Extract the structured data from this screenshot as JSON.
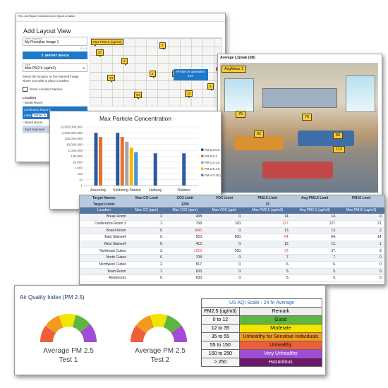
{
  "layout_view": {
    "topbar": "TSI Link Report Creation excel report creation",
    "title": "Add Layout View",
    "name_label": "Name (required)",
    "name_value": "My Floorplan Image 1",
    "name_counter": "20 / 48",
    "import_button": "IMPORT IMAGE",
    "value_label": "Value",
    "value_selected": "Max PM2.5 (ug/m3)",
    "help_text": "Select the location on the inserted image where you wish to place a marker.",
    "show_names_label": "Show Location Names",
    "locations_title": "Location",
    "locations": [
      "Break Room",
      "Conference Room 3",
      "Board Room",
      "East Stairwell"
    ],
    "sub_label": "Label",
    "sub_value": "Printer in",
    "map_header_pin": "Max PM2.5 (ug/m3)",
    "pins": [
      "37",
      "7",
      "6",
      "14",
      "5",
      "5",
      "5",
      "64",
      "12"
    ],
    "popup_title": "Printer in operation",
    "popup_value": "137"
  },
  "photo_view": {
    "title": "Average LZpeak (dB)",
    "header_tag": "AvgMeas 1",
    "tags": [
      "75",
      "76",
      "92",
      "80",
      "113"
    ]
  },
  "chart_data": {
    "type": "bar",
    "title": "Max Particle Concentration",
    "y_scale": "log",
    "ylim": [
      1,
      10000000000
    ],
    "y_tick_labels": [
      "10,000,000,000",
      "1,000,000,000",
      "100,000,000",
      "10,000,000",
      "1,000,000",
      "100,000",
      "10,000",
      "1,000",
      "100",
      "10",
      "1"
    ],
    "categories": [
      "Assembly",
      "Soldering Station",
      "Hallway",
      "Outdoor"
    ],
    "series": [
      {
        "name": "PM 0.3-0.5",
        "color": "#2c5aa0",
        "values": [
          1000000000,
          1000000000,
          320000,
          320000
        ]
      },
      {
        "name": "PM 0.5-1",
        "color": "#e8702a",
        "values": [
          200000000,
          200000000,
          null,
          null
        ]
      },
      {
        "name": "PM 1.0-2.5 (#/m3)",
        "color": "#a5a5a5",
        "values": [
          null,
          30000000,
          null,
          null
        ]
      },
      {
        "name": "PM 2.5-4.0 (#/m3)",
        "color": "#f5b700",
        "values": [
          null,
          3000000,
          null,
          null
        ]
      },
      {
        "name": "PM 4.0-10 (#/m3)",
        "color": "#4a8fd4",
        "values": [
          null,
          500000,
          null,
          null
        ]
      }
    ],
    "legend": "right"
  },
  "table": {
    "target_names_label": "Target Names",
    "target_limits_label": "Target Limits",
    "targets": [
      "Max CO Limit",
      "CO2 Limit",
      "VOC Limit",
      "PM2.5 Limit",
      "Avg PM2.5 Limit",
      "PM10 Limit"
    ],
    "limits": [
      "",
      "1200",
      "",
      "15",
      "",
      ""
    ],
    "columns": [
      "Location",
      "Max CO (ppm)",
      "Max CO2 (ppm)",
      "Max VOC (ppb)",
      "Max PM2.5 (ug/m3)",
      "Avg PM2.5 (ug/m3)",
      "Max PM10 (ug/m3)"
    ],
    "rows": [
      {
        "cells": [
          "Break Room",
          "2.",
          "408.",
          "0.",
          "14.",
          "14.",
          "0."
        ],
        "red": []
      },
      {
        "cells": [
          "Conference Room 3",
          "1.",
          "768.",
          "100.",
          "127.",
          "127.",
          "21."
        ],
        "red": [
          4
        ]
      },
      {
        "cells": [
          "Board Room",
          "0.",
          "1843.",
          "0.",
          "13.",
          "13.",
          "2."
        ],
        "red": [
          2
        ]
      },
      {
        "cells": [
          "East Stairwell",
          "0.",
          "553.",
          "800.",
          "64.",
          "64.",
          "14."
        ],
        "red": [
          4
        ]
      },
      {
        "cells": [
          "West Stairwell",
          "6.",
          "412.",
          "0.",
          "12.",
          "12.",
          "1."
        ],
        "red": []
      },
      {
        "cells": [
          "Northeast Cubes",
          "3.",
          "1210.",
          "200.",
          "37.",
          "37.",
          "9."
        ],
        "red": [
          2,
          4
        ]
      },
      {
        "cells": [
          "North Cubes",
          "0.",
          "708.",
          "0.",
          "7.",
          "7.",
          "0."
        ],
        "red": []
      },
      {
        "cells": [
          "Northwest Cubes",
          "2.",
          "817.",
          "0.",
          "6.",
          "6.",
          "0."
        ],
        "red": []
      },
      {
        "cells": [
          "Team Room",
          "1.",
          "633.",
          "0.",
          "5.",
          "5.",
          "0."
        ],
        "red": []
      },
      {
        "cells": [
          "Restrooms",
          "0.",
          "633.",
          "0.",
          "5.",
          "5.",
          "0."
        ],
        "red": []
      }
    ]
  },
  "aqi": {
    "title": "Air Quality Index (PM 2.5)",
    "gauges": [
      {
        "line1": "Average PM 2.5",
        "line2": "Test 1",
        "value_fraction": 0.78
      },
      {
        "line1": "Average PM 2.5",
        "line2": "Test 2",
        "value_fraction": 0.8
      }
    ],
    "scale_caption": "US AQI Scale : 24 hr Average",
    "scale_headers": [
      "PM2.5 (ug/m3)",
      "Remark"
    ],
    "scale_rows": [
      {
        "range": "0 to 12",
        "remark": "Good",
        "color": "#5cb63f"
      },
      {
        "range": "12 to 35",
        "remark": "Moderate",
        "color": "#f2e600"
      },
      {
        "range": "35 to 55",
        "remark": "Unhealthy for Sensitive Individuals",
        "color": "#f39a1e"
      },
      {
        "range": "55 to 150",
        "remark": "Unhealthy",
        "color": "#ed5f3a"
      },
      {
        "range": "150 to 250",
        "remark": "Very Unhealthy",
        "color": "#a24bd6"
      },
      {
        "range": "> 250",
        "remark": "Hazardous",
        "color": "#6b1a6b"
      }
    ],
    "gauge_colors": [
      "#ed5f3a",
      "#f39a1e",
      "#f2e600",
      "#5cb63f",
      "#a24bd6"
    ]
  }
}
